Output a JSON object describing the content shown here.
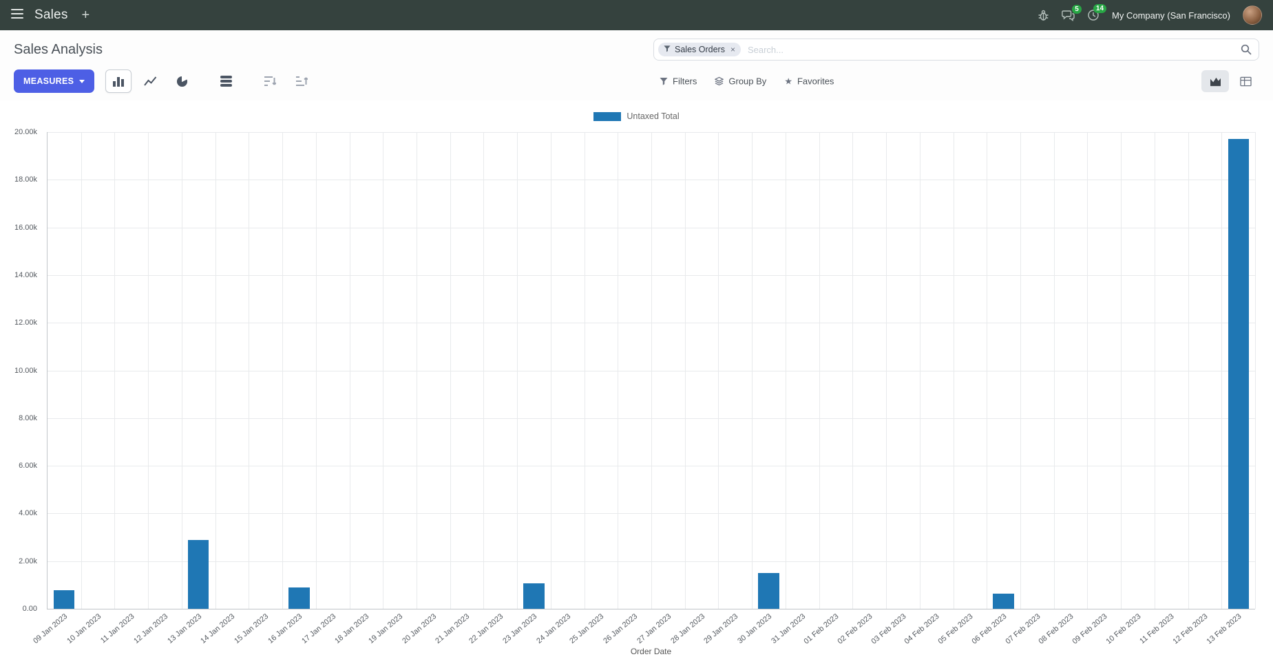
{
  "navbar": {
    "app_name": "Sales",
    "plus_label": "+",
    "messages_badge": "5",
    "activities_badge": "14",
    "company": "My Company (San Francisco)"
  },
  "control_panel": {
    "title": "Sales Analysis",
    "search": {
      "facet": "Sales Orders",
      "remove_label": "×",
      "placeholder": "Search..."
    },
    "measures_label": "MEASURES",
    "filters_label": "Filters",
    "group_by_label": "Group By",
    "favorites_label": "Favorites"
  },
  "chart_data": {
    "type": "bar",
    "legend": "Untaxed Total",
    "xlabel": "Order Date",
    "ylabel": "",
    "ylim": [
      0,
      20000
    ],
    "grid": true,
    "legend_position": "top",
    "bar_color": "#1f77b4",
    "ytick_labels": [
      "0.00",
      "2.00k",
      "4.00k",
      "6.00k",
      "8.00k",
      "10.00k",
      "12.00k",
      "14.00k",
      "16.00k",
      "18.00k",
      "20.00k"
    ],
    "categories": [
      "09 Jan 2023",
      "10 Jan 2023",
      "11 Jan 2023",
      "12 Jan 2023",
      "13 Jan 2023",
      "14 Jan 2023",
      "15 Jan 2023",
      "16 Jan 2023",
      "17 Jan 2023",
      "18 Jan 2023",
      "19 Jan 2023",
      "20 Jan 2023",
      "21 Jan 2023",
      "22 Jan 2023",
      "23 Jan 2023",
      "24 Jan 2023",
      "25 Jan 2023",
      "26 Jan 2023",
      "27 Jan 2023",
      "28 Jan 2023",
      "29 Jan 2023",
      "30 Jan 2023",
      "31 Jan 2023",
      "01 Feb 2023",
      "02 Feb 2023",
      "03 Feb 2023",
      "04 Feb 2023",
      "05 Feb 2023",
      "06 Feb 2023",
      "07 Feb 2023",
      "08 Feb 2023",
      "09 Feb 2023",
      "10 Feb 2023",
      "11 Feb 2023",
      "12 Feb 2023",
      "13 Feb 2023"
    ],
    "values": [
      790,
      0,
      0,
      0,
      2900,
      0,
      0,
      900,
      0,
      0,
      0,
      0,
      0,
      0,
      1070,
      0,
      0,
      0,
      0,
      0,
      0,
      1500,
      0,
      0,
      0,
      0,
      0,
      0,
      630,
      0,
      0,
      0,
      0,
      0,
      0,
      19700
    ]
  },
  "colors": {
    "navbar_bg": "#35423e",
    "accent": "#4d5fe5",
    "bar": "#1f77b4",
    "badge": "#28a745"
  }
}
